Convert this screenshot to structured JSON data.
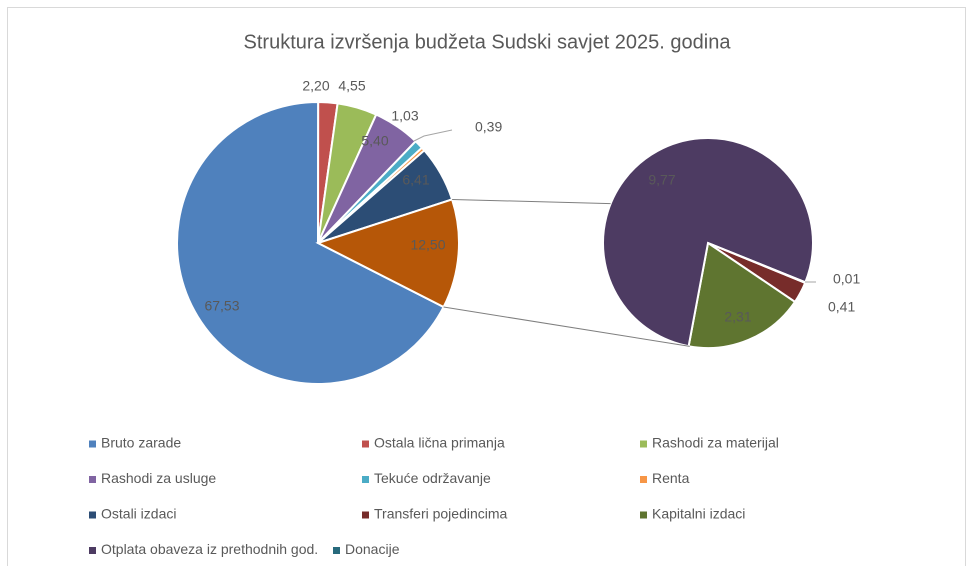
{
  "chart_data": {
    "type": "pie-of-pie",
    "title": "Struktura izvršenja budžeta Sudski savjet 2025. godina",
    "series": [
      {
        "name": "Bruto zarade",
        "color": "#4f81bd",
        "value": 67.53,
        "value_label": "67,53",
        "pie": "main"
      },
      {
        "name": "Ostala lična primanja",
        "color": "#c0504d",
        "value": 2.2,
        "value_label": "2,20",
        "pie": "main"
      },
      {
        "name": "Rashodi za materijal",
        "color": "#9bbb59",
        "value": 4.55,
        "value_label": "4,55",
        "pie": "main"
      },
      {
        "name": "Rashodi za  usluge",
        "color": "#8064a2",
        "value": 5.4,
        "value_label": "5,40",
        "pie": "main"
      },
      {
        "name": "Tekuće održavanje",
        "color": "#4bacc6",
        "value": 1.03,
        "value_label": "1,03",
        "pie": "main"
      },
      {
        "name": "Renta",
        "color": "#f79646",
        "value": 0.39,
        "value_label": "0,39",
        "pie": "main"
      },
      {
        "name": "Ostali izdaci",
        "color": "#2c4d75",
        "value": 6.41,
        "value_label": "6,41",
        "pie": "main"
      },
      {
        "name": "Transferi pojedincima",
        "color": "#772c2a",
        "value": 0.41,
        "value_label": "0,41",
        "pie": "secondary"
      },
      {
        "name": "Kapitalni izdaci",
        "color": "#5f7530",
        "value": 2.31,
        "value_label": "2,31",
        "pie": "secondary"
      },
      {
        "name": "Otplata obaveza iz  prethodnih god.",
        "color": "#4d3b62",
        "value": 9.77,
        "value_label": "9,77",
        "pie": "secondary"
      },
      {
        "name": "Donacije",
        "color": "#276a7c",
        "value": 0.01,
        "value_label": "0,01",
        "pie": "secondary"
      }
    ],
    "other": {
      "value": 12.5,
      "value_label": "12,50",
      "color": "#b65708"
    }
  }
}
